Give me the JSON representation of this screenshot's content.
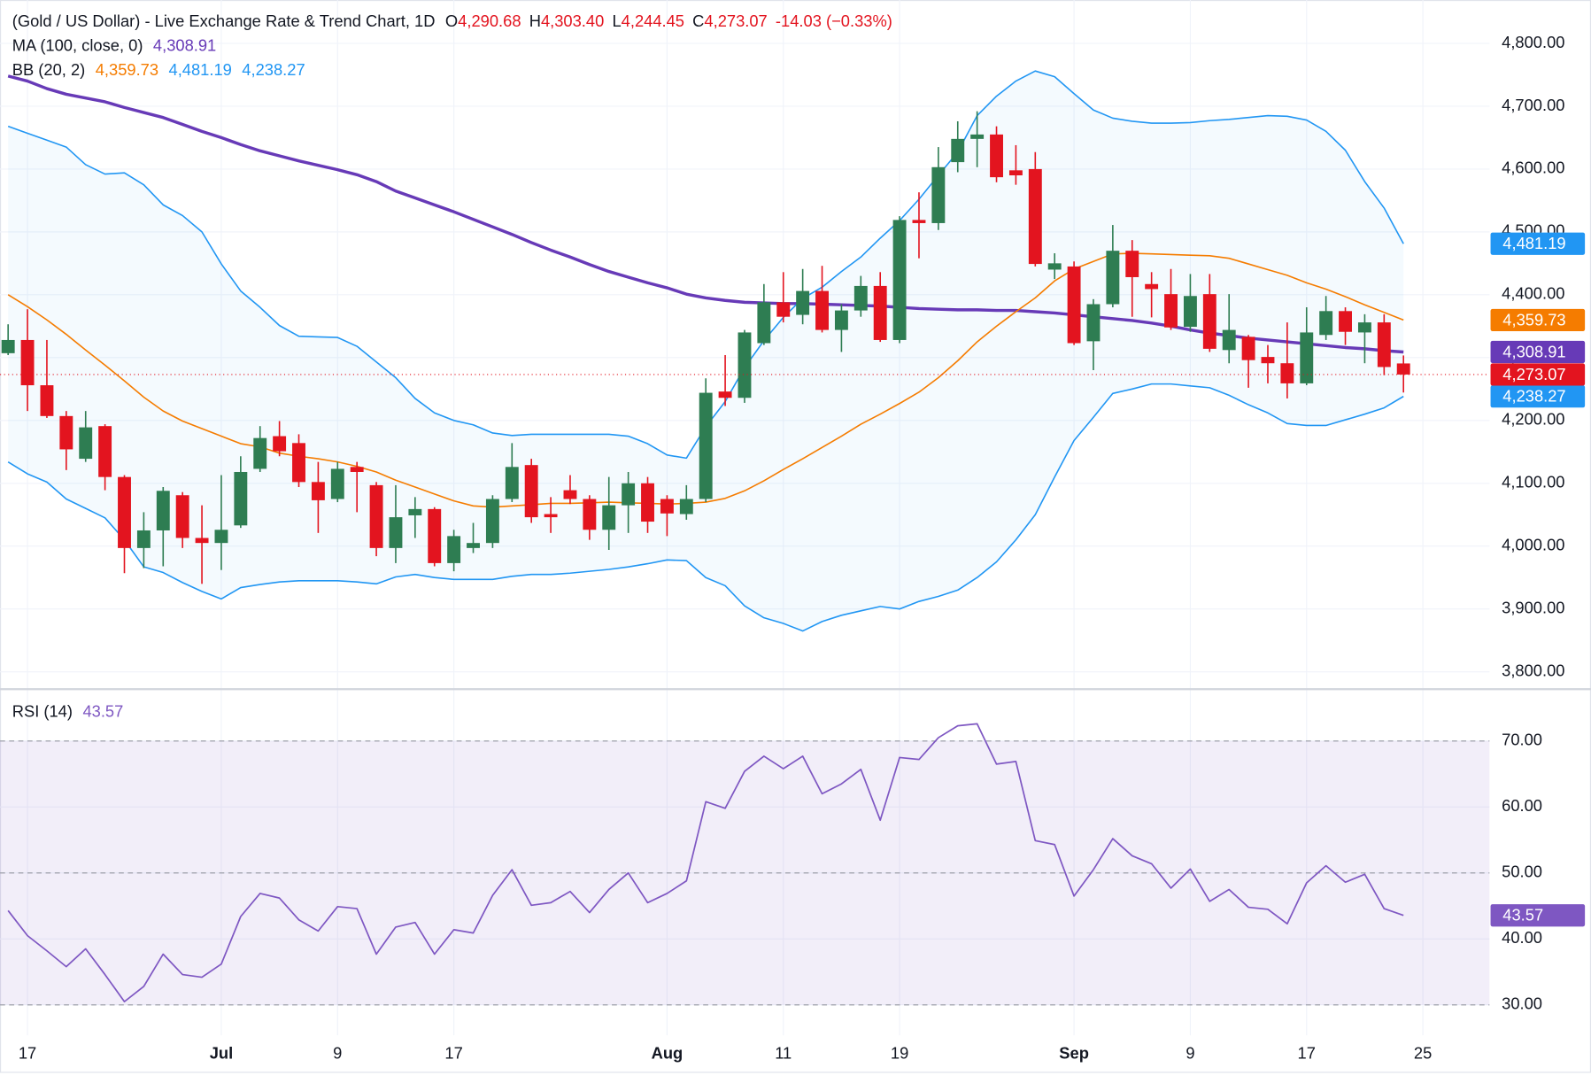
{
  "chart_data": {
    "type": "candlestick",
    "title": "(Gold / US Dollar) - Live Exchange Rate & Trend Chart, 1D",
    "ohlc_legend": [
      {
        "key": "O",
        "label": "4,290.68"
      },
      {
        "key": "H",
        "label": "4,303.40"
      },
      {
        "key": "L",
        "label": "4,244.45"
      },
      {
        "key": "C",
        "label": "4,273.07"
      }
    ],
    "change_label": "-14.03 (−0.33%)",
    "categories": [
      null,
      "17",
      null,
      null,
      null,
      null,
      null,
      null,
      null,
      null,
      null,
      "Jul",
      null,
      null,
      null,
      null,
      null,
      "9",
      null,
      null,
      null,
      null,
      null,
      "17",
      null,
      null,
      null,
      null,
      null,
      null,
      null,
      null,
      null,
      null,
      "Aug",
      null,
      null,
      null,
      null,
      null,
      "11",
      null,
      null,
      null,
      null,
      null,
      "19",
      null,
      null,
      null,
      null,
      null,
      null,
      null,
      null,
      "Sep",
      null,
      null,
      null,
      null,
      null,
      "9",
      null,
      null,
      null,
      null,
      null,
      "17",
      null,
      null,
      null,
      null,
      null,
      "25"
    ],
    "open": [
      4307,
      4328,
      4256,
      4207,
      4139,
      4191,
      4110,
      3997,
      4025,
      4081,
      4013,
      4005,
      4033,
      4123,
      4175,
      4164,
      4102,
      4075,
      4126,
      4097,
      3997,
      4049,
      4059,
      3973,
      3997,
      4005,
      4075,
      4129,
      4051,
      4089,
      4075,
      4026,
      4065,
      4100,
      4075,
      4051,
      4075,
      4246,
      4236,
      4323,
      4388,
      4368,
      4406,
      4344,
      4375,
      4414,
      4328,
      4519,
      4514,
      4611,
      4648,
      4655,
      4598,
      4600,
      4440,
      4445,
      4326,
      4385,
      4470,
      4417,
      4401,
      4349,
      4401,
      4312,
      4333,
      4301,
      4291,
      4259,
      4336,
      4374,
      4340,
      4356,
      4290.68,
      null
    ],
    "high": [
      4353,
      4377,
      4328,
      4215,
      4215,
      4194,
      4113,
      4054,
      4094,
      4086,
      4065,
      4113,
      4143,
      4191,
      4199,
      4178,
      4134,
      4134,
      4134,
      4102,
      4097,
      4078,
      4062,
      4026,
      4037,
      4081,
      4164,
      4139,
      4078,
      4113,
      4081,
      4110,
      4118,
      4110,
      4081,
      4097,
      4267,
      4304,
      4344,
      4417,
      4436,
      4441,
      4446,
      4385,
      4430,
      4436,
      4525,
      4563,
      4635,
      4676,
      4692,
      4668,
      4638,
      4627,
      4466,
      4453,
      4393,
      4511,
      4487,
      4436,
      4441,
      4433,
      4433,
      4401,
      4336,
      4320,
      4356,
      4380,
      4398,
      4380,
      4369,
      4369,
      4303.4,
      null
    ],
    "low": [
      4304,
      4215,
      4204,
      4121,
      4134,
      4089,
      3957,
      3965,
      3968,
      3997,
      3940,
      3962,
      4029,
      4118,
      4143,
      4094,
      4021,
      4070,
      4054,
      3984,
      3973,
      4013,
      3968,
      3960,
      3989,
      3997,
      4070,
      4037,
      4021,
      4067,
      4010,
      3994,
      4021,
      4021,
      4016,
      4042,
      4070,
      4223,
      4228,
      4320,
      4356,
      4353,
      4340,
      4309,
      4365,
      4325,
      4323,
      4458,
      4503,
      4595,
      4603,
      4579,
      4575,
      4445,
      4425,
      4320,
      4280,
      4380,
      4365,
      4364,
      4344,
      4341,
      4309,
      4291,
      4252,
      4259,
      4235,
      4256,
      4328,
      4320,
      4291,
      4272,
      4244.45,
      null
    ],
    "close": [
      4328,
      4256,
      4207,
      4154,
      4189,
      4110,
      3997,
      4025,
      4088,
      4013,
      4005,
      4026,
      4118,
      4172,
      4151,
      4102,
      4073,
      4123,
      4118,
      3997,
      4046,
      4059,
      3973,
      4016,
      4005,
      4075,
      4126,
      4046,
      4046,
      4075,
      4026,
      4065,
      4100,
      4039,
      4052,
      4075,
      4244,
      4236,
      4340,
      4388,
      4365,
      4406,
      4344,
      4375,
      4414,
      4328,
      4519,
      4514,
      4603,
      4648,
      4655,
      4587,
      4590,
      4449,
      4450,
      4323,
      4385,
      4470,
      4428,
      4409,
      4348,
      4398,
      4314,
      4344,
      4296,
      4291,
      4259,
      4340,
      4374,
      4341,
      4356,
      4285,
      4273.07,
      null
    ],
    "up_color": "#2e7d52",
    "down_color": "#e3141f",
    "ylim": [
      3774,
      4869
    ],
    "yticks": [
      {
        "value": 3800,
        "label": "3,800.00"
      },
      {
        "value": 3900,
        "label": "3,900.00"
      },
      {
        "value": 4000,
        "label": "4,000.00"
      },
      {
        "value": 4100,
        "label": "4,100.00"
      },
      {
        "value": 4200,
        "label": "4,200.00"
      },
      {
        "value": 4300,
        "label": "4,300.00"
      },
      {
        "value": 4400,
        "label": "4,400.00"
      },
      {
        "value": 4500,
        "label": "4,500.00"
      },
      {
        "value": 4600,
        "label": "4,600.00"
      },
      {
        "value": 4700,
        "label": "4,700.00"
      },
      {
        "value": 4800,
        "label": "4,800.00"
      }
    ],
    "grid": true,
    "last_price_line": true,
    "overlays": [
      {
        "name": "MA (100, close, 0)",
        "fill": false,
        "lines": [
          {
            "color": "#673ab7",
            "last_label": "4,308.91",
            "values": [
              4748,
              4740,
              4728,
              4719,
              4713,
              4707,
              4698,
              4690,
              4682,
              4671,
              4660,
              4650,
              4639,
              4629,
              4621,
              4613,
              4606,
              4599,
              4591,
              4580,
              4565,
              4554,
              4543,
              4532,
              4520,
              4508,
              4496,
              4483,
              4471,
              4460,
              4448,
              4437,
              4428,
              4419,
              4411,
              4401,
              4395,
              4391,
              4388,
              4387,
              4386,
              4386,
              4385,
              4384,
              4383,
              4382,
              4380,
              4378,
              4377,
              4376,
              4376,
              4375,
              4375,
              4373,
              4371,
              4368,
              4365,
              4362,
              4359,
              4355,
              4350,
              4344,
              4339,
              4335,
              4331,
              4328,
              4325,
              4322,
              4319,
              4316,
              4314,
              4311,
              4308.91,
              null
            ]
          }
        ]
      },
      {
        "name": "BB (20, 2)",
        "fill": true,
        "lines": [
          {
            "color": "#f57c00",
            "last_label": "4,359.73",
            "values": [
              4400,
              4381,
              4360,
              4337,
              4312,
              4288,
              4263,
              4237,
              4215,
              4199,
              4187,
              4175,
              4163,
              4158,
              4148,
              4143,
              4139,
              4134,
              4127,
              4118,
              4105,
              4094,
              4083,
              4072,
              4064,
              4062,
              4064,
              4066,
              4068,
              4068,
              4069,
              4070,
              4069,
              4068,
              4067,
              4068,
              4070,
              4076,
              4088,
              4104,
              4122,
              4139,
              4157,
              4175,
              4194,
              4210,
              4227,
              4245,
              4268,
              4295,
              4325,
              4350,
              4373,
              4395,
              4422,
              4441,
              4453,
              4465,
              4466,
              4465,
              4464,
              4463,
              4462,
              4458,
              4449,
              4440,
              4431,
              4419,
              4409,
              4397,
              4384,
              4372,
              4359.73,
              null
            ]
          },
          {
            "color": "#2196f3",
            "last_label": "4,481.19",
            "values": [
              4668,
              4657,
              4646,
              4635,
              4607,
              4592,
              4594,
              4575,
              4543,
              4526,
              4500,
              4449,
              4406,
              4380,
              4351,
              4334,
              4333,
              4332,
              4318,
              4293,
              4268,
              4235,
              4212,
              4200,
              4193,
              4180,
              4176,
              4178,
              4178,
              4178,
              4178,
              4178,
              4175,
              4163,
              4145,
              4140,
              4190,
              4230,
              4284,
              4327,
              4364,
              4394,
              4412,
              4437,
              4460,
              4490,
              4518,
              4552,
              4590,
              4627,
              4685,
              4716,
              4740,
              4756,
              4747,
              4720,
              4694,
              4681,
              4676,
              4673,
              4673,
              4674,
              4677,
              4679,
              4682,
              4685,
              4684,
              4678,
              4660,
              4630,
              4580,
              4538,
              4481.19,
              null
            ]
          },
          {
            "color": "#2196f3",
            "last_label": "4,238.27",
            "values": [
              4134,
              4115,
              4102,
              4075,
              4060,
              4045,
              4010,
              3967,
              3958,
              3942,
              3928,
              3916,
              3934,
              3939,
              3943,
              3945,
              3945,
              3945,
              3943,
              3940,
              3951,
              3955,
              3950,
              3947,
              3947,
              3947,
              3952,
              3955,
              3955,
              3957,
              3960,
              3963,
              3967,
              3972,
              3978,
              3977,
              3950,
              3937,
              3905,
              3886,
              3877,
              3865,
              3880,
              3890,
              3897,
              3904,
              3900,
              3912,
              3920,
              3930,
              3950,
              3975,
              4010,
              4050,
              4110,
              4168,
              4205,
              4243,
              4250,
              4258,
              4258,
              4255,
              4252,
              4240,
              4225,
              4212,
              4195,
              4192,
              4192,
              4201,
              4210,
              4220,
              4238.27,
              null
            ]
          }
        ]
      }
    ],
    "rsi": {
      "type": "line",
      "name": "RSI (14)",
      "color": "#7e57c2",
      "last_label": "43.57",
      "values": [
        44.3,
        40.5,
        38.2,
        35.8,
        38.5,
        34.6,
        30.5,
        32.8,
        37.7,
        34.6,
        34.2,
        36.2,
        43.4,
        46.9,
        46.2,
        42.9,
        41.2,
        44.9,
        44.6,
        37.7,
        41.8,
        42.5,
        37.7,
        41.4,
        40.9,
        46.6,
        50.5,
        45.1,
        45.5,
        47.2,
        44.0,
        47.5,
        50.0,
        45.5,
        46.9,
        48.8,
        60.8,
        59.8,
        65.4,
        67.7,
        65.8,
        67.7,
        62.0,
        63.5,
        65.7,
        58.0,
        67.5,
        67.2,
        70.5,
        72.3,
        72.6,
        66.5,
        66.9,
        54.9,
        54.3,
        46.5,
        50.5,
        55.2,
        52.6,
        51.4,
        47.7,
        50.6,
        45.7,
        47.5,
        44.8,
        44.5,
        42.3,
        48.5,
        51.1,
        48.6,
        49.8,
        44.6,
        43.57,
        null
      ],
      "ylim": [
        25.4,
        77.7
      ],
      "yticks": [
        {
          "value": 30,
          "label": "30.00"
        },
        {
          "value": 40,
          "label": "40.00"
        },
        {
          "value": 50,
          "label": "50.00"
        },
        {
          "value": 60,
          "label": "60.00"
        },
        {
          "value": 70,
          "label": "70.00"
        }
      ],
      "band": [
        30,
        70
      ],
      "midline": 50
    }
  }
}
